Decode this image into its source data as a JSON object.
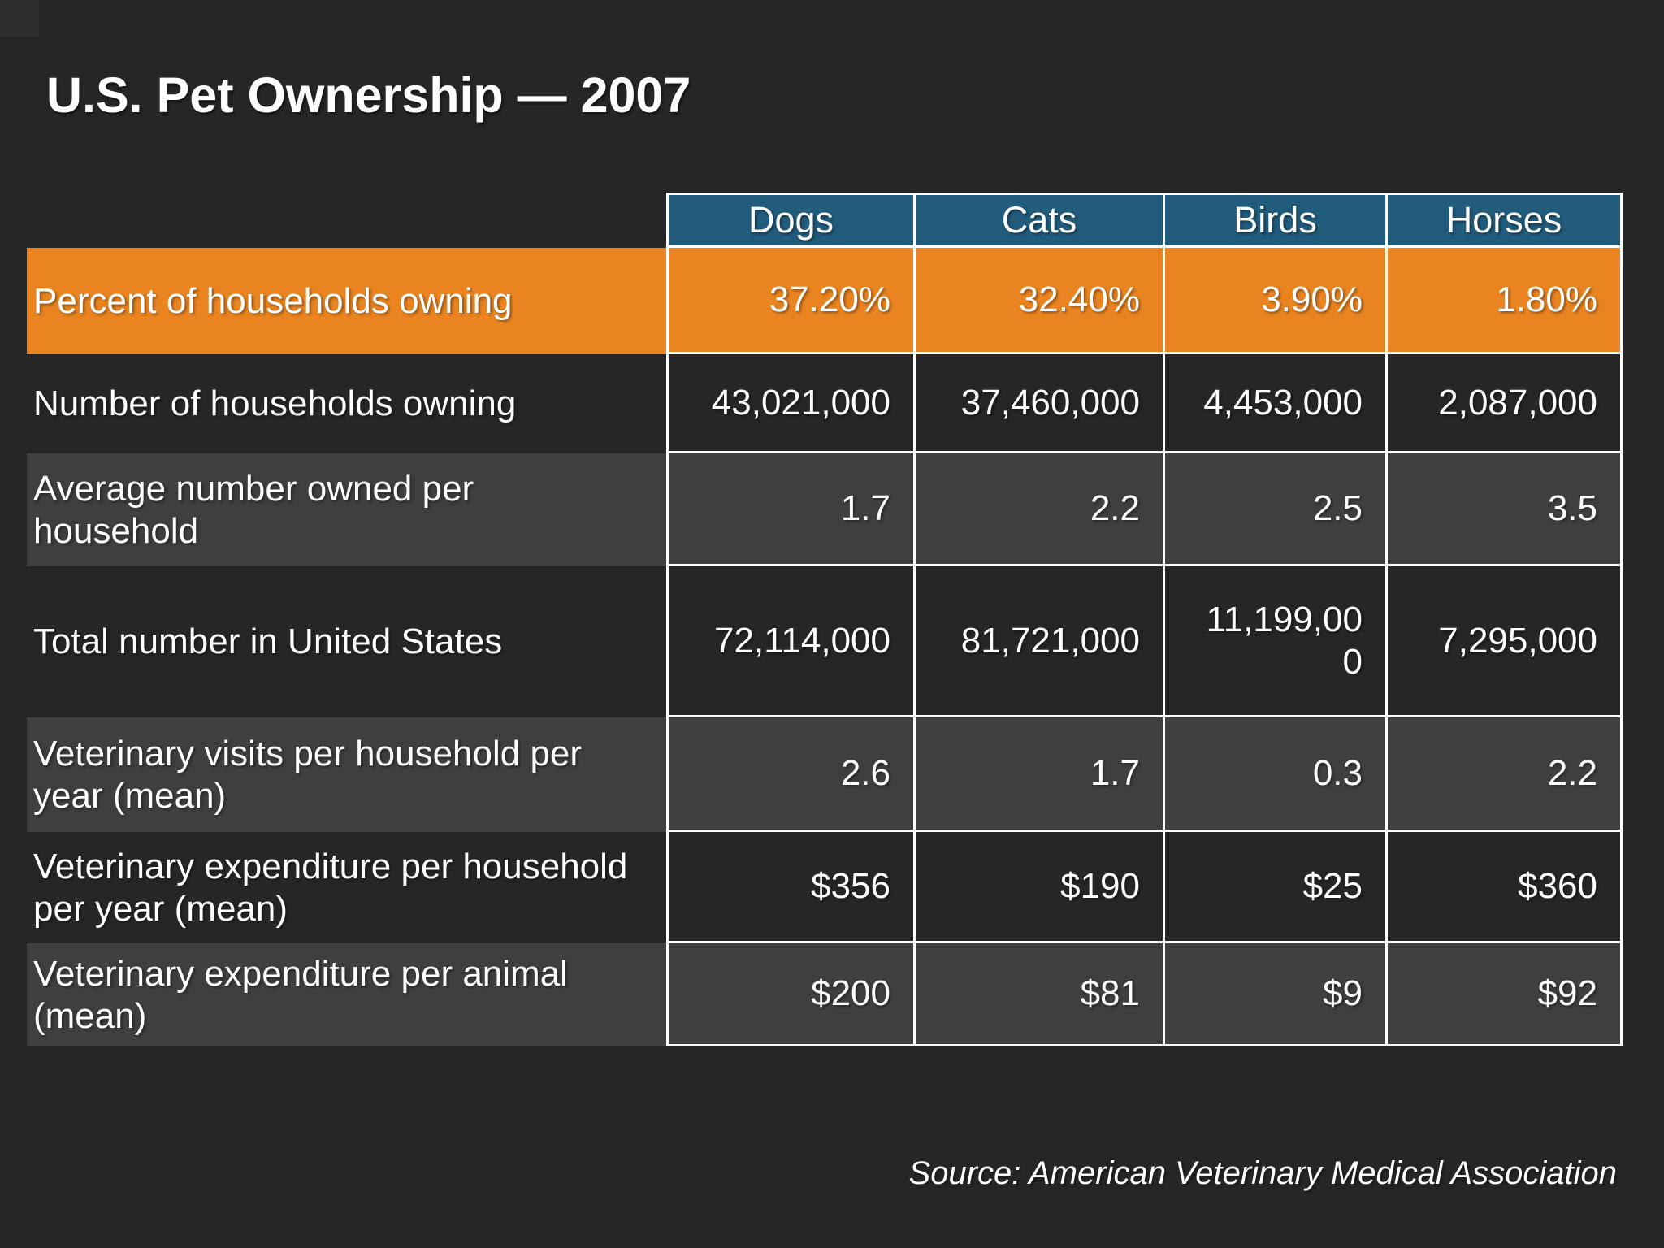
{
  "page": {
    "title": "U.S. Pet Ownership — 2007",
    "source": "Source: American Veterinary Medical Association"
  },
  "colors": {
    "background": "#262626",
    "header_blue": "#215c7c",
    "highlight_orange": "#e98420",
    "light_row_gray": "#3f3f3f",
    "gridline": "#ffffff",
    "text": "#ffffff"
  },
  "chart_data": {
    "type": "table",
    "title": "U.S. Pet Ownership — 2007",
    "columns": [
      "Dogs",
      "Cats",
      "Birds",
      "Horses"
    ],
    "rows": [
      {
        "label": "Percent of households owning",
        "values": [
          "37.20%",
          "32.40%",
          "3.90%",
          "1.80%"
        ]
      },
      {
        "label": "Number of households owning",
        "values": [
          "43,021,000",
          "37,460,000",
          "4,453,000",
          "2,087,000"
        ]
      },
      {
        "label": "Average number owned per household",
        "values": [
          "1.7",
          "2.2",
          "2.5",
          "3.5"
        ]
      },
      {
        "label": "Total number in United States",
        "values": [
          "72,114,000",
          "81,721,000",
          "11,199,000",
          "7,295,000"
        ]
      },
      {
        "label": "Veterinary visits per household per year (mean)",
        "values": [
          "2.6",
          "1.7",
          "0.3",
          "2.2"
        ]
      },
      {
        "label": "Veterinary expenditure per household per year (mean)",
        "values": [
          "$356",
          "$190",
          "$25",
          "$360"
        ]
      },
      {
        "label": "Veterinary expenditure per animal (mean)",
        "values": [
          "$200",
          "$81",
          "$9",
          "$92"
        ]
      }
    ],
    "source": "Source: American Veterinary Medical Association",
    "layout": {
      "grid": "white gridlines on value columns only",
      "legend": "none"
    }
  }
}
